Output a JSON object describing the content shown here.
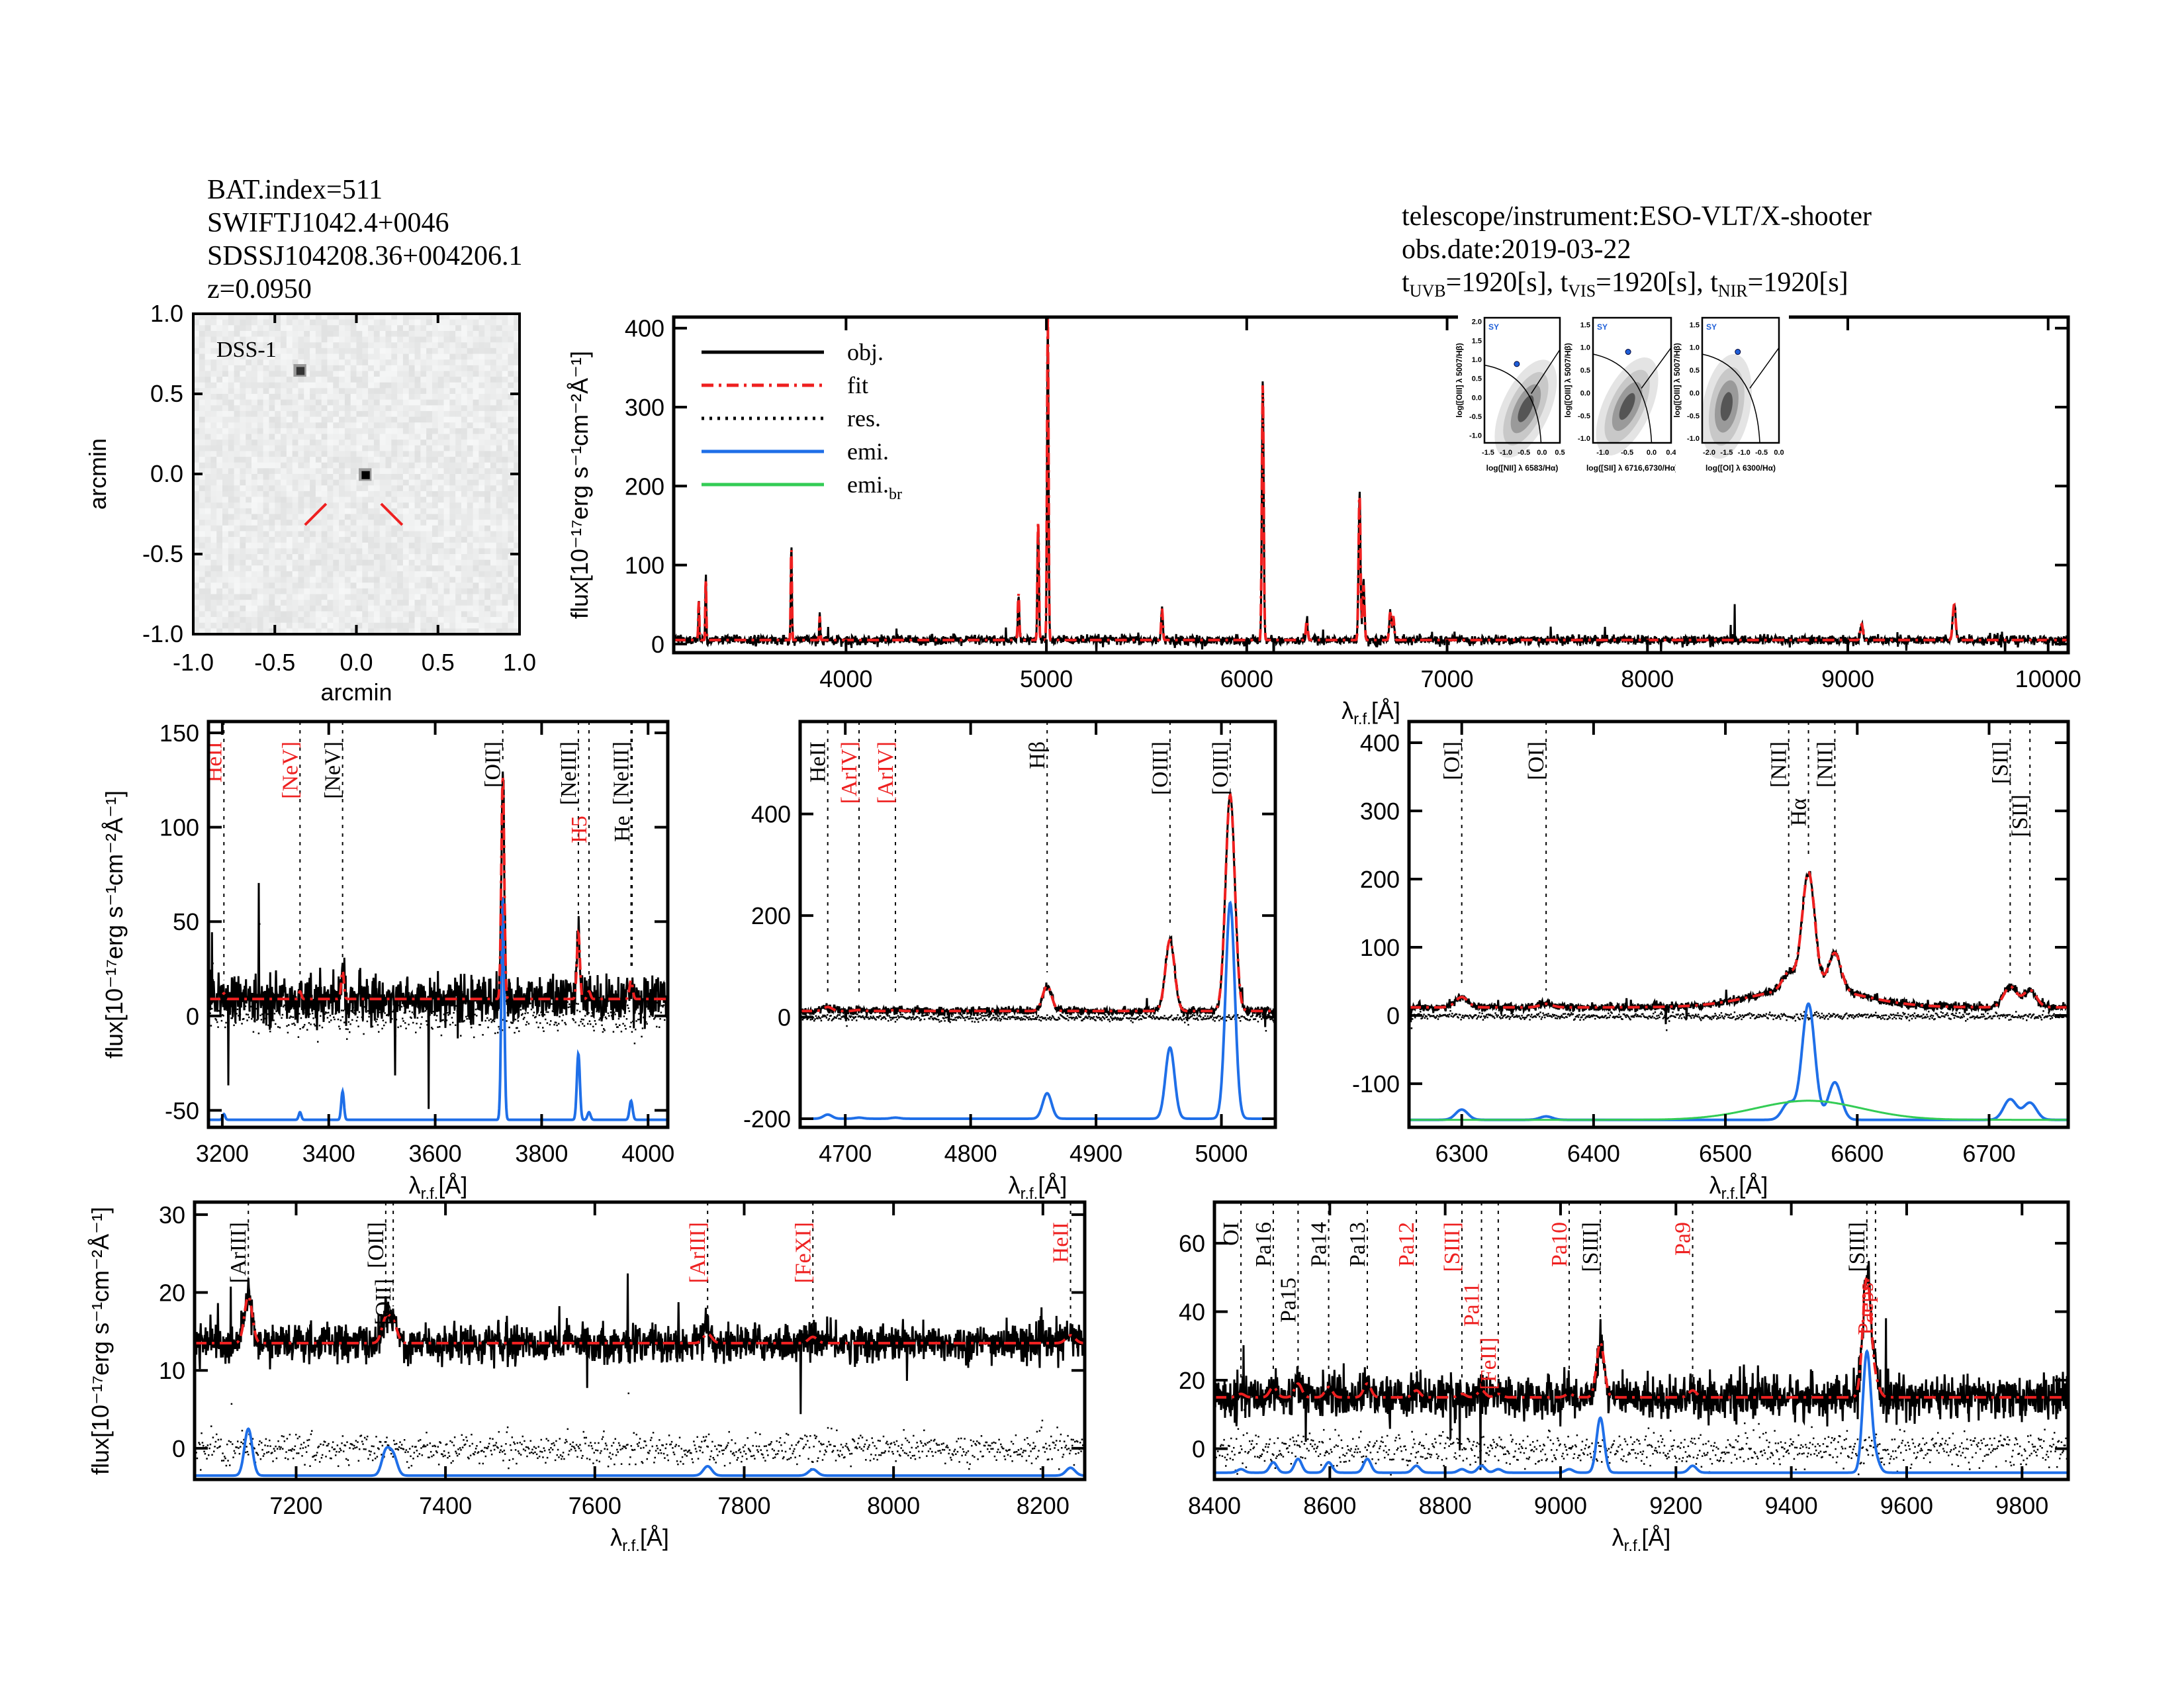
{
  "header_left": [
    "BAT.index=511",
    "SWIFTJ1042.4+0046",
    "SDSSJ104208.36+004206.1",
    "z=0.0950"
  ],
  "header_right": {
    "telescope": "telescope/instrument:ESO-VLT/X-shooter",
    "date": "obs.date:2019-03-22",
    "exposure": [
      {
        "band": "UVB",
        "value": "=1920[s]"
      },
      {
        "band": "VIS",
        "value": "=1920[s]"
      },
      {
        "band": "NIR",
        "value": "=1920[s]"
      }
    ],
    "t_symbol": "t"
  },
  "colors": {
    "obj": "#000000",
    "fit": "#ee2020",
    "res": "#000000",
    "emi": "#1f6fe8",
    "emi_br": "#33cc55",
    "label_red": "#ee2020"
  },
  "dss": {
    "label": "DSS-1",
    "xlabel": "arcmin",
    "ylabel": "arcmin",
    "xlim": [
      -1.0,
      1.0
    ],
    "ylim": [
      -1.0,
      1.0
    ],
    "ticks": [
      "-1.0",
      "-0.5",
      "0.0",
      "0.5",
      "1.0"
    ],
    "target": [
      0.05,
      0.0
    ],
    "stars": [
      [
        -0.35,
        0.65
      ],
      [
        0.05,
        0.0
      ]
    ]
  },
  "legend": [
    {
      "label": "obj.",
      "style": "solid",
      "color": "#000000"
    },
    {
      "label": "fit",
      "style": "dashdot",
      "color": "#ee2020"
    },
    {
      "label": "res.",
      "style": "dotted",
      "color": "#000000"
    },
    {
      "label": "emi.",
      "style": "solid",
      "color": "#1f6fe8"
    },
    {
      "label": "emi.",
      "sub": "br",
      "style": "solid",
      "color": "#33cc55"
    }
  ],
  "axis_text": {
    "ylabel": "flux[10⁻¹⁷erg s⁻¹cm⁻²Å⁻¹]",
    "xlabel_main": "λ",
    "xlabel_sub": "r.f.",
    "xlabel_unit": "[Å]"
  },
  "chart_data": [
    {
      "type": "line",
      "id": "full",
      "xlim": [
        3140,
        10100
      ],
      "ylim": [
        -11,
        414
      ],
      "xticks": [
        4000,
        5000,
        6000,
        7000,
        8000,
        9000,
        10000
      ],
      "yticks": [
        0,
        100,
        200,
        300,
        400
      ],
      "continuum": 5,
      "noise": 3,
      "lines": [
        {
          "wl": 3727,
          "peak": 120
        },
        {
          "wl": 3869,
          "peak": 30
        },
        {
          "wl": 4861,
          "peak": 60
        },
        {
          "wl": 4959,
          "peak": 150
        },
        {
          "wl": 5007,
          "peak": 410
        },
        {
          "wl": 5577,
          "peak": 40
        },
        {
          "wl": 6080,
          "peak": 325
        },
        {
          "wl": 6300,
          "peak": 25
        },
        {
          "wl": 6563,
          "peak": 185
        },
        {
          "wl": 6583,
          "peak": 70
        },
        {
          "wl": 6716,
          "peak": 35
        },
        {
          "wl": 6731,
          "peak": 30
        },
        {
          "wl": 9069,
          "peak": 20
        },
        {
          "wl": 9531,
          "peak": 45
        },
        {
          "wl": 3300,
          "peak": 80
        },
        {
          "wl": 3265,
          "peak": 50
        }
      ]
    },
    {
      "type": "line",
      "id": "uv",
      "xlim": [
        3174,
        4037
      ],
      "ylim": [
        -59,
        156
      ],
      "xticks": [
        3200,
        3400,
        3600,
        3800,
        4000
      ],
      "yticks": [
        -50,
        0,
        50,
        100,
        150
      ],
      "continuum": 9,
      "noise": 6,
      "emi_base": -55,
      "lines": [
        {
          "label": "HeII",
          "wl": 3203,
          "peak": 3,
          "color": "red"
        },
        {
          "label": "[NeV]",
          "wl": 3346,
          "peak": 4,
          "color": "red"
        },
        {
          "label": "[NeV]",
          "wl": 3426,
          "peak": 15,
          "color": "black"
        },
        {
          "label": "[OII]",
          "wl": 3727,
          "peak": 118,
          "color": "black"
        },
        {
          "label": "[NeIII]",
          "wl": 3869,
          "peak": 35,
          "color": "black"
        },
        {
          "label": "H5",
          "wl": 3889,
          "peak": 4,
          "color": "red"
        },
        {
          "label": "[NeIII]",
          "wl": 3968,
          "peak": 10,
          "color": "black"
        },
        {
          "label": "He",
          "wl": 3970,
          "peak": 0,
          "color": "black"
        }
      ]
    },
    {
      "type": "line",
      "id": "hbeta",
      "xlim": [
        4664,
        5043
      ],
      "ylim": [
        -217,
        582
      ],
      "xticks": [
        4700,
        4800,
        4900,
        5000
      ],
      "yticks": [
        -200,
        0,
        200,
        400
      ],
      "continuum": 12,
      "noise": 4,
      "emi_base": -200,
      "lines": [
        {
          "label": "HeII",
          "wl": 4686,
          "peak": 8,
          "color": "black"
        },
        {
          "label": "[ArIV]",
          "wl": 4711,
          "peak": 2,
          "color": "red"
        },
        {
          "label": "[ArIV]",
          "wl": 4740,
          "peak": 2,
          "color": "red"
        },
        {
          "label": "Hβ",
          "wl": 4861,
          "peak": 50,
          "color": "black"
        },
        {
          "label": "[OIII]",
          "wl": 4959,
          "peak": 140,
          "color": "black"
        },
        {
          "label": "[OIII]",
          "wl": 5007,
          "peak": 425,
          "color": "black"
        }
      ]
    },
    {
      "type": "line",
      "id": "halpha",
      "xlim": [
        6260,
        6760
      ],
      "ylim": [
        -164,
        431
      ],
      "xticks": [
        6300,
        6400,
        6500,
        6600,
        6700
      ],
      "yticks": [
        -100,
        0,
        100,
        200,
        300,
        400
      ],
      "continuum": 12,
      "noise": 3,
      "emi_base": -153,
      "broad": {
        "wl": 6563,
        "peak": 28,
        "sigma": 40
      },
      "lines": [
        {
          "label": "[OI]",
          "wl": 6300,
          "peak": 15,
          "color": "black"
        },
        {
          "label": "[OI]",
          "wl": 6364,
          "peak": 5,
          "color": "black"
        },
        {
          "label": "[NII]",
          "wl": 6548,
          "peak": 25,
          "color": "black"
        },
        {
          "label": "Hα",
          "wl": 6563,
          "peak": 170,
          "color": "black"
        },
        {
          "label": "[NII]",
          "wl": 6583,
          "peak": 55,
          "color": "black"
        },
        {
          "label": "[SII]",
          "wl": 6716,
          "peak": 30,
          "color": "black"
        },
        {
          "label": "[SII]",
          "wl": 6731,
          "peak": 25,
          "color": "black"
        }
      ]
    },
    {
      "type": "line",
      "id": "red",
      "xlim": [
        7064,
        8256
      ],
      "ylim": [
        -4,
        31.6
      ],
      "xticks": [
        7200,
        7400,
        7600,
        7800,
        8000,
        8200
      ],
      "yticks": [
        0,
        10,
        20,
        30
      ],
      "continuum": 13.5,
      "noise": 1.2,
      "emi_base": -3.5,
      "lines": [
        {
          "label": "[ArIII]",
          "wl": 7136,
          "peak": 6,
          "color": "black"
        },
        {
          "label": "[OII]",
          "wl": 7320,
          "peak": 3,
          "color": "black"
        },
        {
          "label": "[OII]",
          "wl": 7330,
          "peak": 2.5,
          "color": "black"
        },
        {
          "label": "[ArIII]",
          "wl": 7751,
          "peak": 1.2,
          "color": "red"
        },
        {
          "label": "[FeXI]",
          "wl": 7892,
          "peak": 0.8,
          "color": "red"
        },
        {
          "label": "HeII",
          "wl": 8237,
          "peak": 1,
          "color": "red"
        }
      ]
    },
    {
      "type": "line",
      "id": "nir",
      "xlim": [
        8400,
        9880
      ],
      "ylim": [
        -9,
        72
      ],
      "xticks": [
        8400,
        8600,
        8800,
        9000,
        9200,
        9400,
        9600,
        9800
      ],
      "yticks": [
        0,
        20,
        40,
        60
      ],
      "continuum": 15,
      "noise": 3,
      "emi_base": -7,
      "lines": [
        {
          "label": "OI",
          "wl": 8446,
          "peak": 1,
          "color": "black"
        },
        {
          "label": "Pa16",
          "wl": 8502,
          "peak": 3,
          "color": "black"
        },
        {
          "label": "Pa15",
          "wl": 8545,
          "peak": 4,
          "color": "black"
        },
        {
          "label": "Pa14",
          "wl": 8598,
          "peak": 3,
          "color": "black"
        },
        {
          "label": "Pa13",
          "wl": 8665,
          "peak": 4,
          "color": "black"
        },
        {
          "label": "Pa12",
          "wl": 8750,
          "peak": 2,
          "color": "red"
        },
        {
          "label": "[SIII]",
          "wl": 8829,
          "peak": 1,
          "color": "red"
        },
        {
          "label": "Pa11",
          "wl": 8863,
          "peak": 2,
          "color": "red"
        },
        {
          "label": "[FeII]",
          "wl": 8892,
          "peak": 1,
          "color": "red"
        },
        {
          "label": "Pa10",
          "wl": 9015,
          "peak": 1,
          "color": "red"
        },
        {
          "label": "[SIII]",
          "wl": 9069,
          "peak": 16,
          "color": "black"
        },
        {
          "label": "Pa9",
          "wl": 9229,
          "peak": 2,
          "color": "red"
        },
        {
          "label": "[SIII]",
          "wl": 9531,
          "peak": 35,
          "color": "black"
        },
        {
          "label": "Paeps",
          "wl": 9546,
          "peak": 4,
          "color": "red"
        }
      ]
    }
  ],
  "bpt": [
    {
      "xlabel": "log([NII] λ 6583/Hα)",
      "ylabel": "log([OIII] λ 5007/Hβ)",
      "class": "SY",
      "xlim": [
        -1.6,
        0.5
      ],
      "ylim": [
        -1.2,
        2.1
      ],
      "xticks": [
        "-1.5",
        "-1.0",
        "-0.5",
        "0.0",
        "0.5"
      ],
      "yticks": [
        "-1.0",
        "-0.5",
        "0.0",
        "0.5",
        "1.0",
        "1.5",
        "2.0"
      ],
      "point": [
        -0.7,
        0.88
      ]
    },
    {
      "xlabel": "log([SII] λ 6716,6730/Hα)",
      "ylabel": "log([OIII] λ 5007/Hβ)",
      "class": "SY",
      "xlim": [
        -1.2,
        0.4
      ],
      "ylim": [
        -1.1,
        1.65
      ],
      "xticks": [
        "-1.0",
        "-0.5",
        "0.0",
        "0.4"
      ],
      "yticks": [
        "-1.0",
        "-0.5",
        "0.0",
        "0.5",
        "1.0",
        "1.5"
      ],
      "point": [
        -0.48,
        0.9
      ]
    },
    {
      "xlabel": "log([OI] λ 6300/Hα)",
      "ylabel": "log([OIII] λ 5007/Hβ)",
      "class": "SY",
      "xlim": [
        -2.2,
        0.0
      ],
      "ylim": [
        -1.1,
        1.65
      ],
      "xticks": [
        "-2.0",
        "-1.5",
        "-1.0",
        "-0.5",
        "0.0"
      ],
      "yticks": [
        "-1.0",
        "-0.5",
        "0.0",
        "0.5",
        "1.0",
        "1.5"
      ],
      "point": [
        -1.18,
        0.9
      ]
    }
  ]
}
